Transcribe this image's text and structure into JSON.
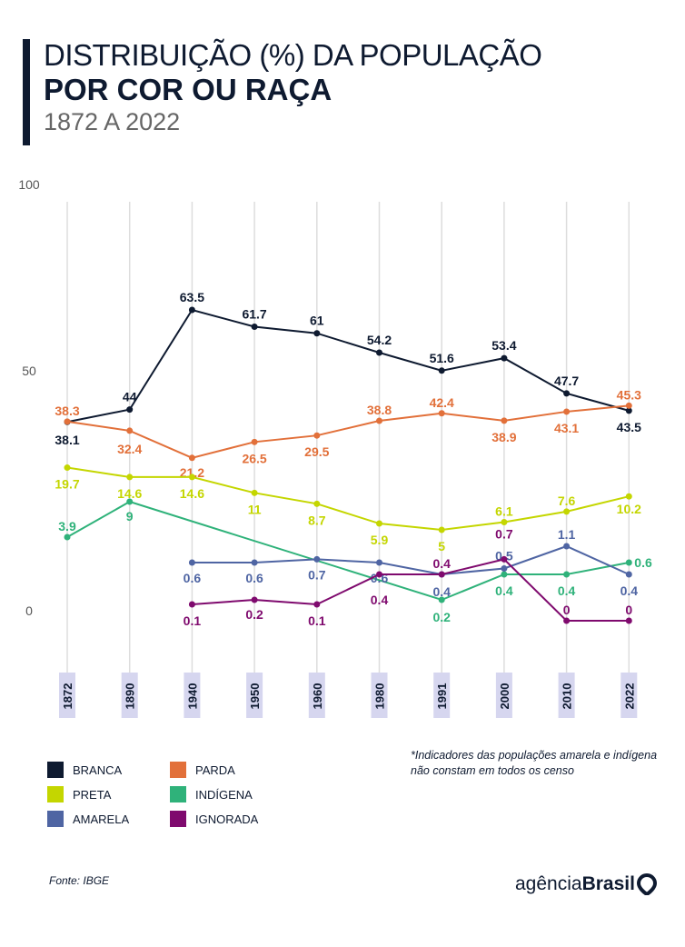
{
  "header": {
    "title_line1": "DISTRIBUIÇÃO  (%) DA POPULAÇÃO",
    "title_line2": "POR COR OU RAÇA",
    "subtitle": "1872 A 2022"
  },
  "chart_data": {
    "type": "line",
    "title": "DISTRIBUIÇÃO  (%) DA POPULAÇÃO POR COR OU RAÇA",
    "subtitle": "1872 A 2022",
    "categories": [
      "1872",
      "1890",
      "1940",
      "1950",
      "1960",
      "1980",
      "1991",
      "2000",
      "2010",
      "2022"
    ],
    "ylim": [
      0,
      100
    ],
    "yticks": [
      "0",
      "50",
      "100"
    ],
    "grid": "vertical",
    "legend_position": "bottom-left",
    "series": [
      {
        "name": "BRANCA",
        "color": "#0e1a30",
        "values": [
          38.1,
          44,
          63.5,
          61.7,
          61,
          54.2,
          51.6,
          53.4,
          47.7,
          43.5
        ]
      },
      {
        "name": "PARDA",
        "color": "#e2703a",
        "values": [
          38.3,
          32.4,
          21.2,
          26.5,
          29.5,
          38.8,
          42.4,
          38.9,
          43.1,
          45.3
        ]
      },
      {
        "name": "PRETA",
        "color": "#c4d600",
        "values": [
          19.7,
          14.6,
          14.6,
          11,
          8.7,
          5.9,
          5,
          6.1,
          7.6,
          10.2
        ]
      },
      {
        "name": "INDÍGENA",
        "color": "#2fb27a",
        "values": [
          3.9,
          9,
          null,
          null,
          null,
          null,
          0.2,
          0.4,
          0.4,
          0.6
        ]
      },
      {
        "name": "AMARELA",
        "color": "#4f65a3",
        "values": [
          null,
          null,
          0.6,
          0.6,
          0.7,
          0.6,
          0.4,
          0.5,
          1.1,
          0.4
        ]
      },
      {
        "name": "IGNORADA",
        "color": "#7f0a6e",
        "values": [
          null,
          null,
          0.1,
          0.2,
          0.1,
          0.4,
          0.4,
          0.7,
          0,
          0
        ]
      }
    ]
  },
  "note": "*Indicadores das populações amarela e indígena não constam em todos os censo",
  "source": "Fonte: IBGE",
  "logo": {
    "light": "agência",
    "bold": "Brasil"
  }
}
